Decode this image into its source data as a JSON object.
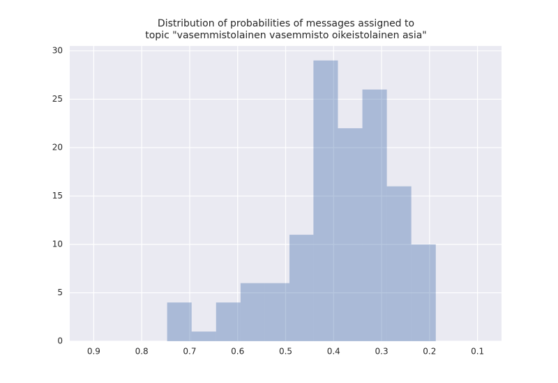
{
  "chart_data": {
    "type": "histogram",
    "title": "Distribution of probabilities of messages assigned to\ntopic \"vasemmistolainen vasemmisto oikeistolainen asia\"",
    "bins": [
      0.187,
      0.238,
      0.289,
      0.34,
      0.391,
      0.442,
      0.492,
      0.543,
      0.594,
      0.645,
      0.696,
      0.747
    ],
    "values": [
      10,
      16,
      26,
      22,
      29,
      11,
      6,
      6,
      4,
      1,
      4
    ],
    "color": "#4c72b0",
    "xlim": [
      0.95,
      0.05
    ],
    "xticks": [
      0.9,
      0.8,
      0.7,
      0.6,
      0.5,
      0.4,
      0.3,
      0.2,
      0.1
    ],
    "ylim": [
      0,
      30.5
    ],
    "yticks": [
      0,
      5,
      10,
      15,
      20,
      25,
      30
    ],
    "grid": true
  }
}
